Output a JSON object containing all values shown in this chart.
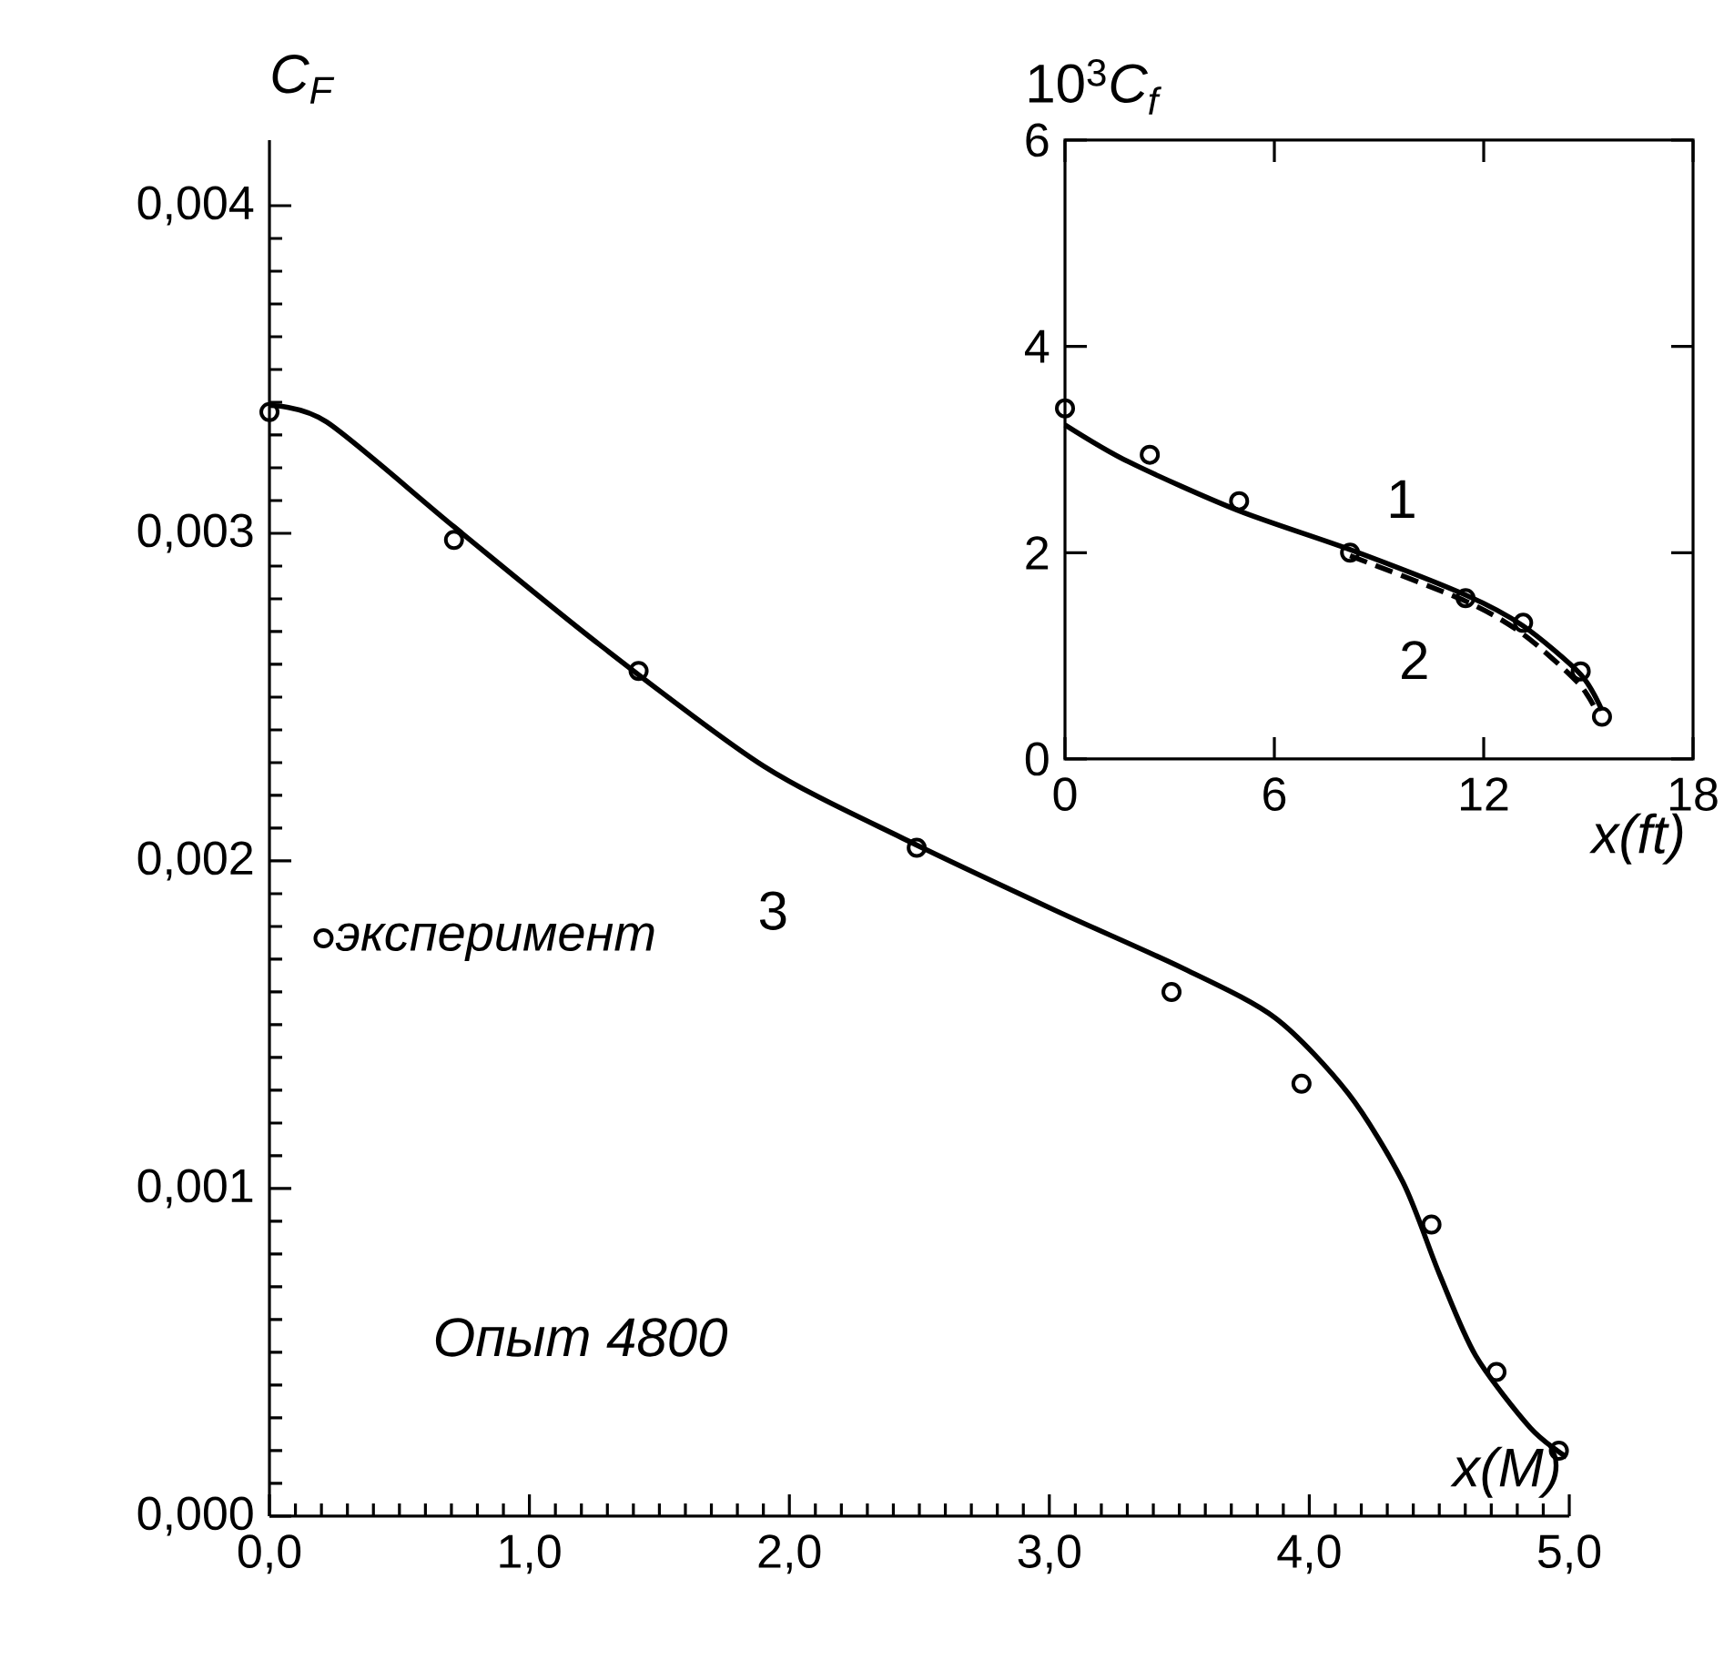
{
  "chart_data": [
    {
      "type": "line",
      "xlabel": "*x(M)*",
      "ylabel": "*C$_{F}$*",
      "legend": "left",
      "xlim": [
        0,
        5
      ],
      "ylim": [
        0,
        0.0042
      ],
      "xticks": [
        {
          "value": 0,
          "label": "0,0"
        },
        {
          "value": 1,
          "label": "1,0"
        },
        {
          "value": 2,
          "label": "2,0"
        },
        {
          "value": 3,
          "label": "3,0"
        },
        {
          "value": 4,
          "label": "4,0"
        },
        {
          "value": 5,
          "label": "5,0"
        }
      ],
      "yticks": [
        {
          "value": 0,
          "label": "0,000"
        },
        {
          "value": 0.001,
          "label": "0,001"
        },
        {
          "value": 0.002,
          "label": "0,002"
        },
        {
          "value": 0.003,
          "label": "0,003"
        },
        {
          "value": 0.004,
          "label": "0,004"
        }
      ],
      "series": [
        {
          "type": "scatter",
          "name": "эксперимент",
          "color": "#000000",
          "marker": "circle",
          "x": [
            0,
            0.71,
            1.42,
            2.49,
            3.47,
            3.97,
            4.47,
            4.72,
            4.96
          ],
          "values": [
            0.00337,
            0.00298,
            0.00258,
            0.00204,
            0.0016,
            0.00132,
            0.00089,
            0.00044,
            0.0002
          ]
        },
        {
          "color": "#000000",
          "x": [
            0,
            0.22,
            0.71,
            1.27,
            1.9,
            2.46,
            3.02,
            3.52,
            3.87,
            4.15,
            4.36,
            4.5,
            4.64,
            4.85,
            4.99
          ],
          "values": [
            0.00339,
            0.00334,
            0.00302,
            0.00266,
            0.00229,
            0.00206,
            0.00185,
            0.00167,
            0.00152,
            0.00129,
            0.00102,
            0.00074,
            0.00049,
            0.00027,
            0.00018
          ]
        }
      ],
      "annotations": [
        "*Опыт 4800*",
        "3"
      ]
    },
    {
      "type": "line",
      "xlabel": "*x(ft)*",
      "ylabel": "10$^{3}$*C$_{f}$*",
      "xlim": [
        0,
        18
      ],
      "ylim": [
        0,
        6
      ],
      "xticks": [
        0,
        6,
        12,
        18
      ],
      "yticks": [
        0,
        2,
        4,
        6
      ],
      "series": [
        {
          "type": "scatter",
          "color": "#000000",
          "marker": "circle",
          "x": [
            0,
            2.43,
            4.99,
            8.17,
            11.48,
            13.13,
            14.78,
            15.39
          ],
          "values": [
            3.4,
            2.95,
            2.5,
            2.0,
            1.56,
            1.32,
            0.85,
            0.41
          ]
        },
        {
          "color": "#000000",
          "line_style": "solid",
          "x": [
            0,
            1.83,
            4.96,
            8.17,
            11.48,
            13.13,
            14.78,
            15.39
          ],
          "values": [
            3.24,
            2.88,
            2.41,
            2.03,
            1.59,
            1.29,
            0.82,
            0.47
          ]
        },
        {
          "color": "#000000",
          "line_style": "dashed",
          "x": [
            8.17,
            11.48,
            13.13,
            14.7,
            15.22
          ],
          "values": [
            1.97,
            1.53,
            1.21,
            0.74,
            0.47
          ]
        }
      ],
      "annotations": [
        "1",
        "2"
      ]
    }
  ]
}
